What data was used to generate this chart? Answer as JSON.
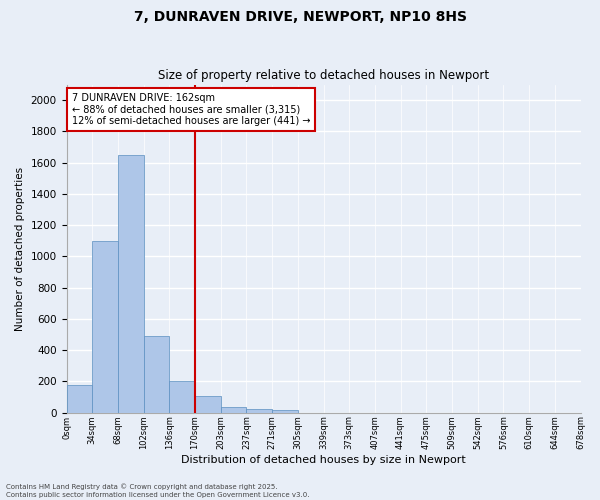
{
  "title": "7, DUNRAVEN DRIVE, NEWPORT, NP10 8HS",
  "subtitle": "Size of property relative to detached houses in Newport",
  "xlabel": "Distribution of detached houses by size in Newport",
  "ylabel": "Number of detached properties",
  "bar_values": [
    175,
    1100,
    1650,
    490,
    200,
    105,
    35,
    22,
    15,
    0,
    0,
    0,
    0,
    0,
    0,
    0,
    0,
    0,
    0,
    0
  ],
  "bin_labels": [
    "0sqm",
    "34sqm",
    "68sqm",
    "102sqm",
    "136sqm",
    "170sqm",
    "203sqm",
    "237sqm",
    "271sqm",
    "305sqm",
    "339sqm",
    "373sqm",
    "407sqm",
    "441sqm",
    "475sqm",
    "509sqm",
    "542sqm",
    "576sqm",
    "610sqm",
    "644sqm",
    "678sqm"
  ],
  "bar_color": "#aec6e8",
  "bar_edge_color": "#5a8fc0",
  "vline_color": "#cc0000",
  "annotation_text": "7 DUNRAVEN DRIVE: 162sqm\n← 88% of detached houses are smaller (3,315)\n12% of semi-detached houses are larger (441) →",
  "annotation_box_color": "#cc0000",
  "ylim": [
    0,
    2100
  ],
  "yticks": [
    0,
    200,
    400,
    600,
    800,
    1000,
    1200,
    1400,
    1600,
    1800,
    2000
  ],
  "background_color": "#e8eef7",
  "grid_color": "#ffffff",
  "footer_line1": "Contains HM Land Registry data © Crown copyright and database right 2025.",
  "footer_line2": "Contains public sector information licensed under the Open Government Licence v3.0."
}
